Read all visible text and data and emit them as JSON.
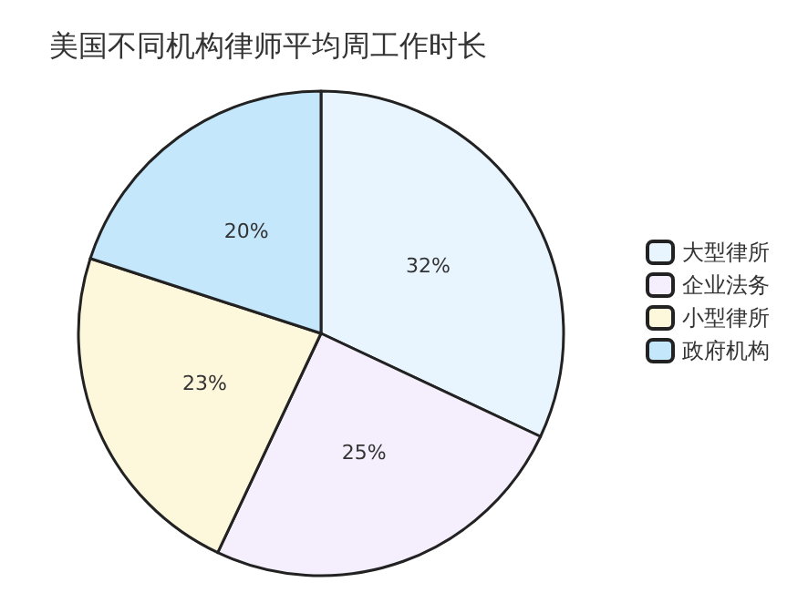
{
  "chart_data": {
    "type": "pie",
    "title": "美国不同机构律师平均周工作时长",
    "categories": [
      "大型律所",
      "企业法务",
      "小型律所",
      "政府机构"
    ],
    "values": [
      32,
      25,
      23,
      20
    ],
    "colors": [
      "#e8f5fe",
      "#f5effd",
      "#fdf7dc",
      "#c5e7fb"
    ],
    "value_labels": [
      "32%",
      "25%",
      "23%",
      "20%"
    ],
    "legend": "right"
  }
}
